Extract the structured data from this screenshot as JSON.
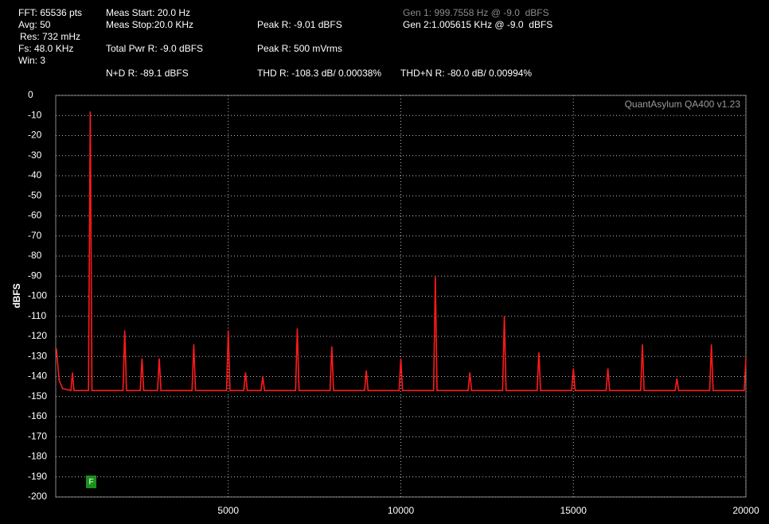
{
  "header": {
    "fft": "FFT: 65536 pts",
    "avg": "Avg: 50",
    "res": "Res: 732 mHz",
    "fs": "Fs: 48.0 KHz",
    "win": "Win: 3",
    "meas_start": "Meas Start: 20.0 Hz",
    "meas_stop": "Meas Stop:20.0 KHz",
    "total_pwr": "Total Pwr R: -9.0 dBFS",
    "n_d": "N+D R: -89.1 dBFS",
    "peak_dbfs": "Peak R: -9.01 dBFS",
    "peak_vrms": "Peak R: 500 mVrms",
    "thd": "THD R: -108.3 dB/ 0.00038%",
    "gen1": "Gen 1: 999.7558 Hz @ -9.0  dBFS",
    "gen2": "Gen 2:1.005615 KHz @ -9.0  dBFS",
    "thd_n": "THD+N R: -80.0 dB/ 0.00994%",
    "watermark": "QuantAsylum QA400 v1.23",
    "marker": "F"
  },
  "chart_data": {
    "type": "line",
    "y_label": "dBFS",
    "x": [
      20,
      100,
      200,
      440,
      485,
      530,
      950,
      1000,
      1050,
      1950,
      2000,
      2050,
      2450,
      2500,
      2550,
      2950,
      3000,
      3050,
      3950,
      4000,
      4050,
      4950,
      5000,
      5050,
      5450,
      5500,
      5550,
      5950,
      6000,
      6050,
      6950,
      7000,
      7050,
      7950,
      8000,
      8050,
      8950,
      9000,
      9050,
      9950,
      10000,
      10050,
      10950,
      11000,
      11050,
      11950,
      12000,
      12050,
      12950,
      13000,
      13050,
      13950,
      14000,
      14050,
      14950,
      15000,
      15050,
      15950,
      16000,
      16050,
      16950,
      17000,
      17050,
      17950,
      18000,
      18050,
      18950,
      19000,
      19050,
      19950,
      20000
    ],
    "series": [
      {
        "name": "R",
        "color": "#ff1a1a",
        "values": [
          -126,
          -142,
          -146,
          -147,
          -138,
          -147,
          -147,
          -8,
          -147,
          -147,
          -117,
          -147,
          -147,
          -131,
          -147,
          -147,
          -131,
          -147,
          -147,
          -124,
          -147,
          -147,
          -117,
          -147,
          -147,
          -138,
          -147,
          -147,
          -140,
          -147,
          -147,
          -116,
          -147,
          -147,
          -125,
          -147,
          -147,
          -137,
          -147,
          -147,
          -131,
          -147,
          -147,
          -90,
          -147,
          -147,
          -138,
          -147,
          -147,
          -110,
          -147,
          -147,
          -128,
          -147,
          -147,
          -136,
          -147,
          -147,
          -136,
          -147,
          -147,
          -124,
          -147,
          -147,
          -141,
          -147,
          -147,
          -124,
          -147,
          -147,
          -131
        ]
      }
    ],
    "xlim": [
      0,
      20000
    ],
    "xticks": [
      5000,
      10000,
      15000,
      20000
    ],
    "ylim": [
      -200,
      0
    ],
    "yticks": [
      0,
      -10,
      -20,
      -30,
      -40,
      -50,
      -60,
      -70,
      -80,
      -90,
      -100,
      -110,
      -120,
      -130,
      -140,
      -150,
      -160,
      -170,
      -180,
      -190,
      -200
    ],
    "grid": true
  }
}
